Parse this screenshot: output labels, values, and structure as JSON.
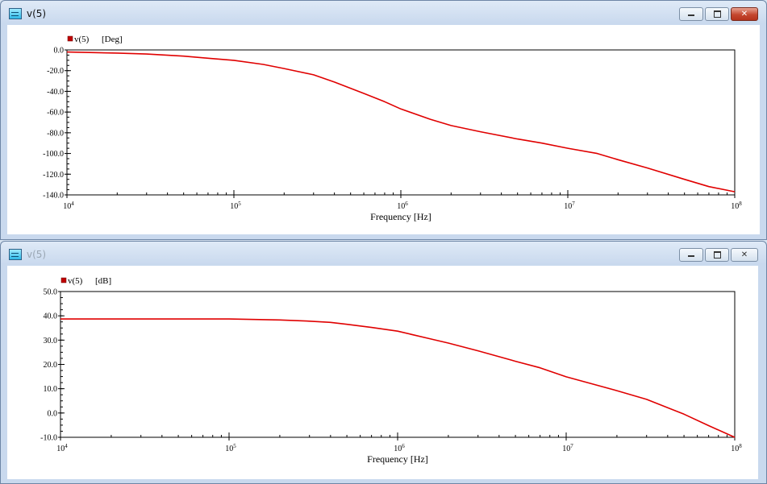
{
  "windows": [
    {
      "title": "v(5)",
      "buttons": {
        "minimize": "minimize",
        "maximize": "maximize",
        "close": "close"
      }
    },
    {
      "title": "v(5)",
      "buttons": {
        "minimize": "minimize",
        "maximize": "maximize",
        "close": "close"
      }
    }
  ],
  "colors": {
    "trace": "#e00000",
    "legend_marker": "#c00000",
    "close_active": "#c4472f"
  },
  "icons": {
    "app": "waveform-window-icon",
    "minimize": "minimize-icon",
    "maximize": "maximize-icon",
    "close": "close-icon"
  },
  "chart_data": [
    {
      "type": "line",
      "scale_x": "log",
      "xlabel": "Frequency [Hz]",
      "ylabel": "",
      "xlim": [
        10000,
        100000000
      ],
      "ylim": [
        -140,
        0
      ],
      "yticks": [
        "0.0",
        "-20.0",
        "-40.0",
        "-60.0",
        "-80.0",
        "-100.0",
        "-120.0",
        "-140.0"
      ],
      "ytick_values": [
        0,
        -20,
        -40,
        -60,
        -80,
        -100,
        -120,
        -140
      ],
      "xticks": [
        {
          "base": "10",
          "exp": "4",
          "value": 10000
        },
        {
          "base": "10",
          "exp": "5",
          "value": 100000
        },
        {
          "base": "10",
          "exp": "6",
          "value": 1000000
        },
        {
          "base": "10",
          "exp": "7",
          "value": 10000000
        },
        {
          "base": "10",
          "exp": "8",
          "value": 100000000
        }
      ],
      "legend": {
        "label": "v(5)",
        "unit": "[Deg]",
        "placement": "top-left"
      },
      "grid": false,
      "series": [
        {
          "name": "v(5)",
          "x": [
            10000,
            20000,
            30000,
            50000,
            70000,
            100000,
            150000,
            200000,
            300000,
            400000,
            600000,
            800000,
            1000000,
            1500000,
            2000000,
            3000000,
            5000000,
            7000000,
            10000000,
            15000000,
            20000000,
            30000000,
            50000000,
            70000000,
            100000000
          ],
          "y": [
            -2,
            -3,
            -4,
            -6,
            -8,
            -10,
            -14,
            -18,
            -24,
            -31,
            -42,
            -50,
            -57,
            -67,
            -73,
            -79,
            -86,
            -90,
            -95,
            -100,
            -106,
            -114,
            -125,
            -132,
            -137
          ]
        }
      ]
    },
    {
      "type": "line",
      "scale_x": "log",
      "xlabel": "Frequency [Hz]",
      "ylabel": "",
      "xlim": [
        10000,
        100000000
      ],
      "ylim": [
        -10,
        50
      ],
      "yticks": [
        "50.0",
        "40.0",
        "30.0",
        "20.0",
        "10.0",
        "0.0",
        "-10.0"
      ],
      "ytick_values": [
        50,
        40,
        30,
        20,
        10,
        0,
        -10
      ],
      "xticks": [
        {
          "base": "10",
          "exp": "4",
          "value": 10000
        },
        {
          "base": "10",
          "exp": "5",
          "value": 100000
        },
        {
          "base": "10",
          "exp": "6",
          "value": 1000000
        },
        {
          "base": "10",
          "exp": "7",
          "value": 10000000
        },
        {
          "base": "10",
          "exp": "8",
          "value": 100000000
        }
      ],
      "legend": {
        "label": "v(5)",
        "unit": "[dB]",
        "placement": "top-left"
      },
      "grid": false,
      "series": [
        {
          "name": "v(5)",
          "x": [
            10000,
            30000,
            100000,
            200000,
            300000,
            400000,
            500000,
            700000,
            1000000,
            1500000,
            2000000,
            3000000,
            5000000,
            7000000,
            10000000,
            20000000,
            30000000,
            50000000,
            70000000,
            100000000
          ],
          "y": [
            38.7,
            38.7,
            38.7,
            38.3,
            37.8,
            37.3,
            36.5,
            35.2,
            33.7,
            30.8,
            28.8,
            25.6,
            21.3,
            18.6,
            14.9,
            9.2,
            5.6,
            -0.5,
            -5.2,
            -10
          ]
        }
      ]
    }
  ]
}
